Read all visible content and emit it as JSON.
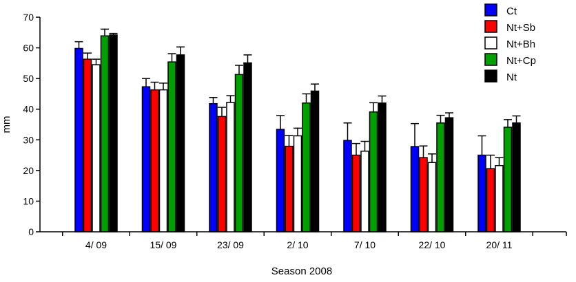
{
  "chart_data": {
    "type": "bar",
    "title": "",
    "xlabel": "Season 2008",
    "ylabel": "mm",
    "ylim": [
      0,
      70
    ],
    "yticks": [
      0,
      10,
      20,
      30,
      40,
      50,
      60,
      70
    ],
    "grid": false,
    "legend_position": "top-right",
    "categories": [
      "4/ 09",
      "15/ 09",
      "23/ 09",
      "2/ 10",
      "7/ 10",
      "22/ 10",
      "20/ 11"
    ],
    "series": [
      {
        "name": "Ct",
        "color": "#0000ff",
        "values": [
          59.8,
          47.3,
          41.8,
          33.4,
          29.8,
          27.8,
          25.0
        ],
        "errors": [
          2.2,
          2.7,
          2.0,
          4.5,
          5.7,
          7.5,
          6.3
        ]
      },
      {
        "name": "Nt+Sb",
        "color": "#ff0000",
        "values": [
          56.3,
          46.3,
          37.6,
          27.9,
          25.0,
          24.2,
          20.6
        ],
        "errors": [
          2.0,
          2.5,
          3.0,
          3.5,
          3.8,
          3.8,
          4.4
        ]
      },
      {
        "name": "Nt+Bh",
        "color": "#ffffff",
        "values": [
          54.5,
          46.3,
          42.2,
          31.3,
          26.3,
          22.6,
          21.6
        ],
        "errors": [
          1.8,
          2.2,
          2.2,
          2.5,
          3.2,
          2.8,
          2.6
        ]
      },
      {
        "name": "Nt+Cp",
        "color": "#00a000",
        "values": [
          63.9,
          55.4,
          51.3,
          42.0,
          39.1,
          35.5,
          34.1
        ],
        "errors": [
          2.2,
          2.7,
          3.0,
          3.0,
          3.0,
          2.5,
          2.5
        ]
      },
      {
        "name": "Nt",
        "color": "#000000",
        "values": [
          64.2,
          57.7,
          55.1,
          45.9,
          42.0,
          37.2,
          35.5
        ],
        "errors": [
          0.5,
          2.6,
          2.6,
          2.3,
          2.3,
          1.6,
          2.3
        ]
      }
    ]
  }
}
